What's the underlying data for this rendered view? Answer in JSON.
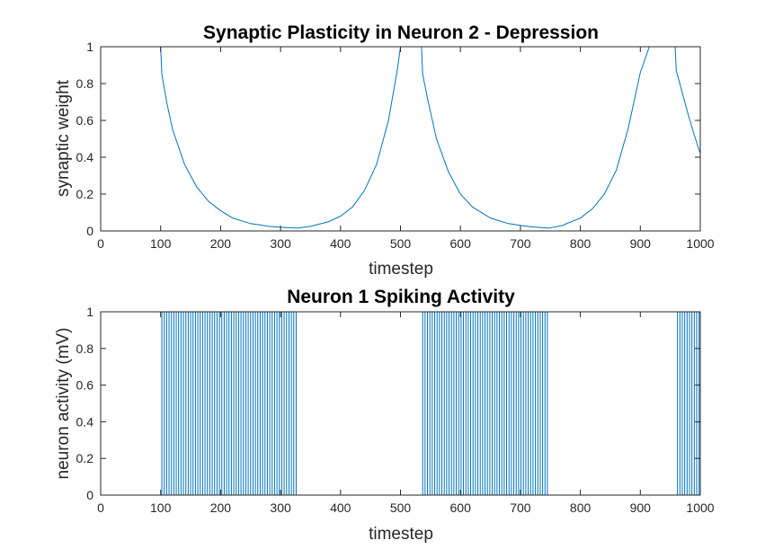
{
  "chart_data": [
    {
      "type": "line",
      "title": "Synaptic Plasticity in Neuron 2 - Depression",
      "xlabel": "timestep",
      "ylabel": "synaptic weight",
      "xlim": [
        0,
        1000
      ],
      "ylim": [
        0,
        1
      ],
      "xticks": [
        "0",
        "100",
        "200",
        "300",
        "400",
        "500",
        "600",
        "700",
        "800",
        "900",
        "1000"
      ],
      "yticks": [
        "0",
        "0.2",
        "0.4",
        "0.6",
        "0.8",
        "1"
      ],
      "grid": false,
      "color": "#0072bd",
      "series": [
        {
          "x": [
            0,
            100,
            102,
            110,
            120,
            140,
            160,
            180,
            200,
            220,
            250,
            280,
            300,
            328,
            350,
            380,
            400,
            420,
            440,
            460,
            480,
            495,
            500,
            535,
            537,
            545,
            560,
            580,
            600,
            620,
            650,
            680,
            700,
            720,
            748,
            770,
            800,
            820,
            840,
            860,
            880,
            900,
            915,
            958,
            960,
            970,
            980,
            990,
            1000
          ],
          "y": [
            1,
            1,
            0.85,
            0.7,
            0.55,
            0.36,
            0.24,
            0.16,
            0.11,
            0.07,
            0.04,
            0.025,
            0.02,
            0.015,
            0.025,
            0.05,
            0.08,
            0.13,
            0.22,
            0.36,
            0.6,
            0.88,
            1,
            1,
            0.85,
            0.72,
            0.5,
            0.32,
            0.2,
            0.13,
            0.07,
            0.04,
            0.03,
            0.022,
            0.015,
            0.03,
            0.07,
            0.12,
            0.2,
            0.33,
            0.56,
            0.86,
            1,
            1,
            0.87,
            0.75,
            0.63,
            0.52,
            0.42
          ]
        }
      ]
    },
    {
      "type": "line",
      "title": "Neuron 1 Spiking Activity",
      "xlabel": "timestep",
      "ylabel": "neuron activity (mV)",
      "xlim": [
        0,
        1000
      ],
      "ylim": [
        0,
        1
      ],
      "xticks": [
        "0",
        "100",
        "200",
        "300",
        "400",
        "500",
        "600",
        "700",
        "800",
        "900",
        "1000"
      ],
      "yticks": [
        "0",
        "0.2",
        "0.4",
        "0.6",
        "0.8",
        "1"
      ],
      "grid": false,
      "color": "#0072bd",
      "spike_value": 1,
      "spike_intervals": [
        [
          102,
          328,
          4
        ],
        [
          537,
          748,
          4
        ],
        [
          962,
          1000,
          4
        ]
      ]
    }
  ]
}
